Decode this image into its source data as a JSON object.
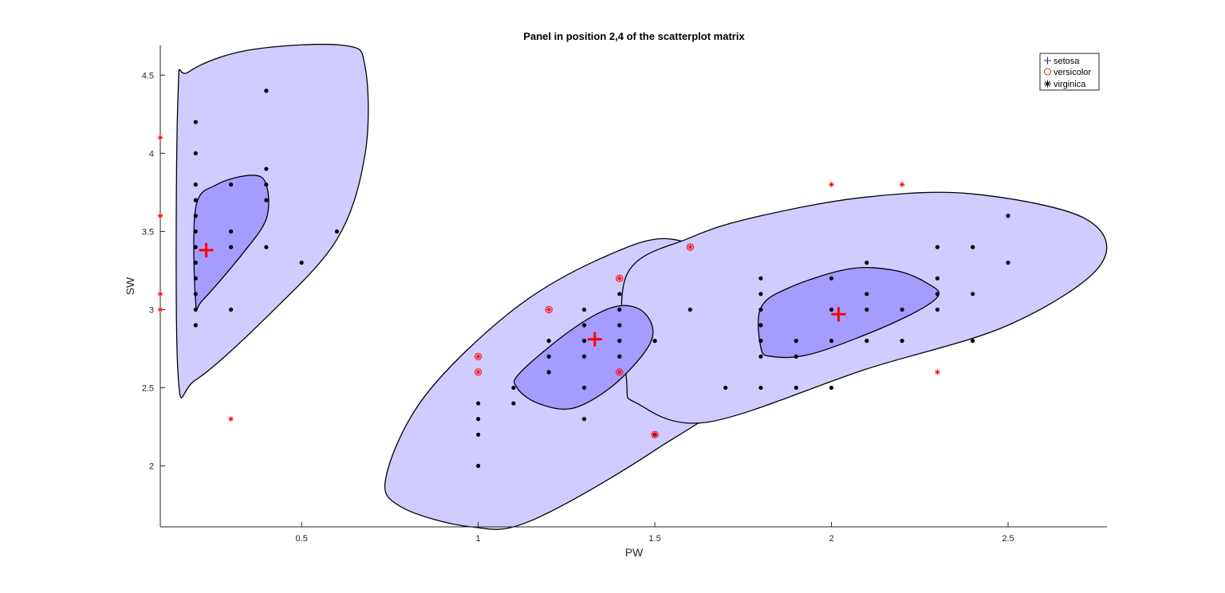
{
  "chart_data": {
    "type": "scatter",
    "title": "Panel in position 2,4 of the scatterplot matrix",
    "xlabel": "PW",
    "ylabel": "SW",
    "xlim": [
      0.1,
      2.78
    ],
    "ylim": [
      1.61,
      4.69
    ],
    "xticks": [
      0.5,
      1,
      1.5,
      2,
      2.5
    ],
    "xtick_labels": [
      "0.5",
      "1",
      "1.5",
      "2",
      "2.5"
    ],
    "yticks": [
      2,
      2.5,
      3,
      3.5,
      4,
      4.5
    ],
    "ytick_labels": [
      "2",
      "2.5",
      "3",
      "3.5",
      "4",
      "4.5"
    ],
    "grid": false,
    "legend_position": "top-right",
    "legend": [
      {
        "label": "setosa",
        "marker": "+",
        "color": "#1a1aa6"
      },
      {
        "label": "versicolor",
        "marker": "o",
        "color": "#d02020"
      },
      {
        "label": "virginica",
        "marker": "*",
        "color": "#000000"
      }
    ],
    "colors": {
      "points": "#000000",
      "outliers": "#ff0000",
      "centers": "#ff0000",
      "outer_region": "#d0ccff",
      "inner_region": "#a59cff",
      "region_stroke": "#000000"
    },
    "series": [
      {
        "name": "setosa",
        "center": [
          0.23,
          3.38
        ],
        "points": [
          [
            0.2,
            2.9
          ],
          [
            0.2,
            3.0
          ],
          [
            0.2,
            3.1
          ],
          [
            0.2,
            3.2
          ],
          [
            0.2,
            3.3
          ],
          [
            0.2,
            3.4
          ],
          [
            0.2,
            3.5
          ],
          [
            0.2,
            3.6
          ],
          [
            0.2,
            3.7
          ],
          [
            0.2,
            3.8
          ],
          [
            0.2,
            4.0
          ],
          [
            0.2,
            4.2
          ],
          [
            0.3,
            3.0
          ],
          [
            0.3,
            3.4
          ],
          [
            0.3,
            3.5
          ],
          [
            0.3,
            3.8
          ],
          [
            0.4,
            3.4
          ],
          [
            0.4,
            3.7
          ],
          [
            0.4,
            3.8
          ],
          [
            0.4,
            3.9
          ],
          [
            0.4,
            4.4
          ],
          [
            0.5,
            3.3
          ],
          [
            0.6,
            3.5
          ]
        ],
        "outliers": [
          [
            0.1,
            4.1
          ],
          [
            0.1,
            3.6
          ],
          [
            0.1,
            3.1
          ],
          [
            0.1,
            3.0
          ],
          [
            0.3,
            2.3
          ]
        ]
      },
      {
        "name": "versicolor",
        "center": [
          1.33,
          2.81
        ],
        "points": [
          [
            1.0,
            2.0
          ],
          [
            1.0,
            2.2
          ],
          [
            1.0,
            2.3
          ],
          [
            1.0,
            2.4
          ],
          [
            1.1,
            2.4
          ],
          [
            1.1,
            2.5
          ],
          [
            1.2,
            2.6
          ],
          [
            1.2,
            2.7
          ],
          [
            1.2,
            2.8
          ],
          [
            1.3,
            2.3
          ],
          [
            1.3,
            2.5
          ],
          [
            1.3,
            2.7
          ],
          [
            1.3,
            2.8
          ],
          [
            1.3,
            2.9
          ],
          [
            1.3,
            3.0
          ],
          [
            1.4,
            2.7
          ],
          [
            1.4,
            2.8
          ],
          [
            1.4,
            2.9
          ],
          [
            1.4,
            3.0
          ],
          [
            1.4,
            3.1
          ],
          [
            1.5,
            2.8
          ],
          [
            1.5,
            2.2
          ]
        ],
        "outliers": [
          [
            1.0,
            2.7
          ],
          [
            1.0,
            2.6
          ],
          [
            1.2,
            3.0
          ],
          [
            1.4,
            3.2
          ],
          [
            1.4,
            2.6
          ],
          [
            1.5,
            2.2
          ],
          [
            1.6,
            3.4
          ]
        ]
      },
      {
        "name": "virginica",
        "center": [
          2.02,
          2.97
        ],
        "points": [
          [
            1.6,
            3.0
          ],
          [
            1.7,
            2.5
          ],
          [
            1.8,
            2.5
          ],
          [
            1.8,
            2.7
          ],
          [
            1.8,
            2.8
          ],
          [
            1.8,
            2.9
          ],
          [
            1.8,
            3.0
          ],
          [
            1.8,
            3.1
          ],
          [
            1.8,
            3.2
          ],
          [
            1.9,
            2.5
          ],
          [
            1.9,
            2.7
          ],
          [
            1.9,
            2.8
          ],
          [
            2.0,
            2.5
          ],
          [
            2.0,
            2.8
          ],
          [
            2.0,
            3.0
          ],
          [
            2.0,
            3.2
          ],
          [
            2.1,
            2.8
          ],
          [
            2.1,
            3.0
          ],
          [
            2.1,
            3.1
          ],
          [
            2.1,
            3.3
          ],
          [
            2.2,
            2.8
          ],
          [
            2.2,
            3.0
          ],
          [
            2.3,
            3.0
          ],
          [
            2.3,
            3.1
          ],
          [
            2.3,
            3.2
          ],
          [
            2.3,
            3.4
          ],
          [
            2.4,
            2.8
          ],
          [
            2.4,
            3.1
          ],
          [
            2.4,
            3.4
          ],
          [
            2.5,
            3.3
          ],
          [
            2.5,
            3.6
          ]
        ],
        "outliers": [
          [
            2.0,
            3.8
          ],
          [
            2.2,
            3.8
          ],
          [
            2.3,
            2.6
          ]
        ]
      }
    ],
    "regions": [
      {
        "group": "setosa",
        "level": "outer",
        "vertices": [
          [
            0.15,
            4.35
          ],
          [
            0.18,
            4.52
          ],
          [
            0.35,
            4.66
          ],
          [
            0.62,
            4.69
          ],
          [
            0.68,
            4.55
          ],
          [
            0.68,
            4.0
          ],
          [
            0.6,
            3.45
          ],
          [
            0.4,
            2.95
          ],
          [
            0.2,
            2.55
          ],
          [
            0.15,
            2.6
          ]
        ]
      },
      {
        "group": "setosa",
        "level": "inner",
        "vertices": [
          [
            0.2,
            3.05
          ],
          [
            0.2,
            3.65
          ],
          [
            0.26,
            3.8
          ],
          [
            0.36,
            3.86
          ],
          [
            0.4,
            3.8
          ],
          [
            0.4,
            3.58
          ],
          [
            0.33,
            3.35
          ],
          [
            0.22,
            3.06
          ]
        ]
      },
      {
        "group": "versicolor",
        "level": "outer",
        "vertices": [
          [
            0.74,
            1.94
          ],
          [
            0.78,
            1.74
          ],
          [
            0.98,
            1.61
          ],
          [
            1.15,
            1.65
          ],
          [
            1.5,
            2.1
          ],
          [
            1.75,
            2.55
          ],
          [
            1.72,
            3.2
          ],
          [
            1.55,
            3.45
          ],
          [
            1.35,
            3.33
          ],
          [
            1.1,
            3.0
          ],
          [
            0.85,
            2.45
          ]
        ]
      },
      {
        "group": "versicolor",
        "level": "inner",
        "vertices": [
          [
            1.11,
            2.5
          ],
          [
            1.17,
            2.4
          ],
          [
            1.27,
            2.37
          ],
          [
            1.39,
            2.53
          ],
          [
            1.49,
            2.8
          ],
          [
            1.47,
            2.98
          ],
          [
            1.39,
            3.02
          ],
          [
            1.27,
            2.88
          ],
          [
            1.12,
            2.6
          ]
        ]
      },
      {
        "group": "virginica",
        "level": "outer",
        "vertices": [
          [
            1.42,
            2.55
          ],
          [
            1.42,
            3.22
          ],
          [
            1.6,
            3.46
          ],
          [
            1.8,
            3.6
          ],
          [
            2.1,
            3.72
          ],
          [
            2.4,
            3.74
          ],
          [
            2.72,
            3.58
          ],
          [
            2.76,
            3.28
          ],
          [
            2.5,
            2.9
          ],
          [
            2.1,
            2.62
          ],
          [
            1.65,
            2.28
          ],
          [
            1.45,
            2.4
          ]
        ]
      },
      {
        "group": "virginica",
        "level": "inner",
        "vertices": [
          [
            1.8,
            2.76
          ],
          [
            1.83,
            2.7
          ],
          [
            1.95,
            2.72
          ],
          [
            2.18,
            2.92
          ],
          [
            2.3,
            3.08
          ],
          [
            2.27,
            3.17
          ],
          [
            2.18,
            3.25
          ],
          [
            2.05,
            3.26
          ],
          [
            1.88,
            3.14
          ],
          [
            1.8,
            3.01
          ]
        ]
      }
    ]
  }
}
